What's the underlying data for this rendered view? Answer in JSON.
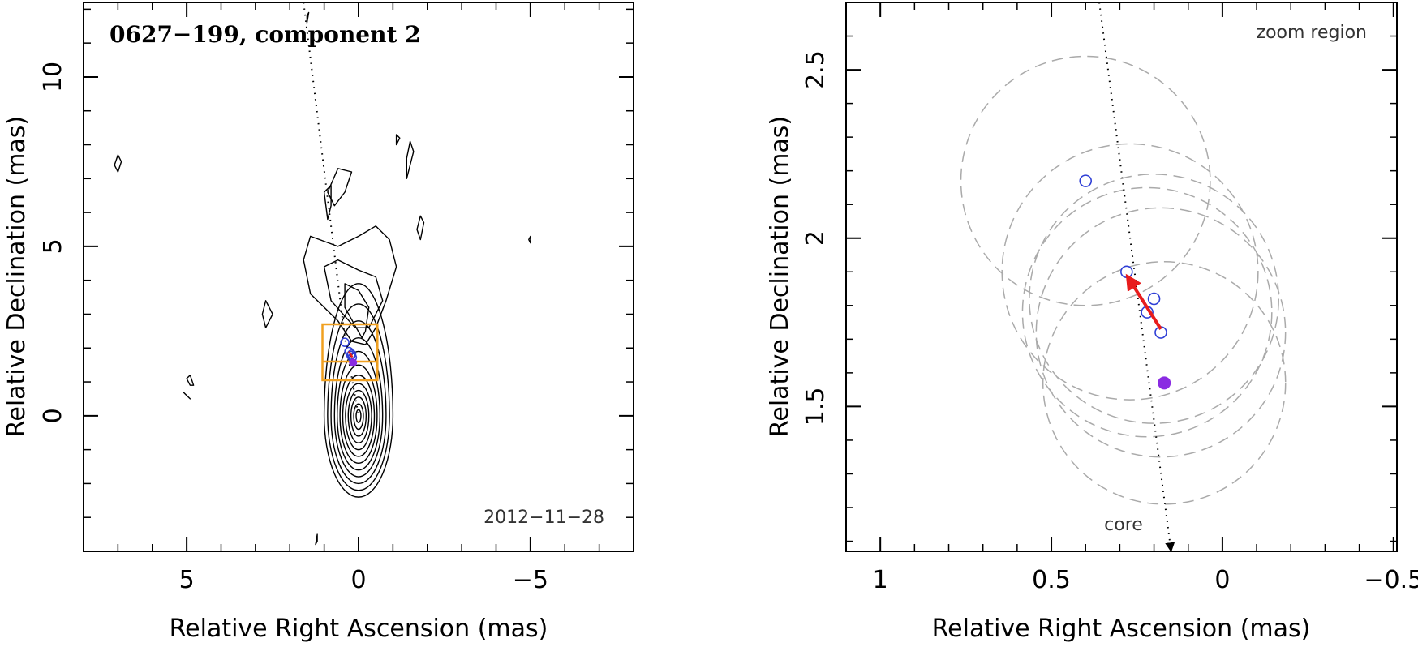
{
  "chart_data": [
    {
      "type": "contour",
      "title": "0627−199, component 2",
      "date_label": "2012−11−28",
      "xlabel": "Relative Right Ascension (mas)",
      "ylabel": "Relative Declination (mas)",
      "xlim": [
        8,
        -8
      ],
      "ylim": [
        -4,
        12.2
      ],
      "x_ticks": [
        5,
        0,
        -5
      ],
      "x_tick_labels": [
        "5",
        "0",
        "−5"
      ],
      "y_ticks": [
        0,
        5,
        10
      ],
      "y_tick_labels": [
        "0",
        "5",
        "10"
      ],
      "core_contours": {
        "center_x": 0,
        "center_y": 0,
        "levels": [
          {
            "rx": 1.0,
            "ry_up": 3.9,
            "ry_down": 2.4
          },
          {
            "rx": 0.9,
            "ry_up": 3.3,
            "ry_down": 2.2
          },
          {
            "rx": 0.8,
            "ry_up": 2.8,
            "ry_down": 2.0
          },
          {
            "rx": 0.7,
            "ry_up": 2.3,
            "ry_down": 1.8
          },
          {
            "rx": 0.62,
            "ry_up": 1.9,
            "ry_down": 1.6
          },
          {
            "rx": 0.54,
            "ry_up": 1.5,
            "ry_down": 1.4
          },
          {
            "rx": 0.46,
            "ry_up": 1.2,
            "ry_down": 1.2
          },
          {
            "rx": 0.38,
            "ry_up": 0.95,
            "ry_down": 1.0
          },
          {
            "rx": 0.3,
            "ry_up": 0.75,
            "ry_down": 0.8
          },
          {
            "rx": 0.22,
            "ry_up": 0.55,
            "ry_down": 0.6
          },
          {
            "rx": 0.14,
            "ry_up": 0.35,
            "ry_down": 0.4
          },
          {
            "rx": 0.07,
            "ry_up": 0.18,
            "ry_down": 0.2
          }
        ]
      },
      "outer_contours": [
        [
          [
            0.6,
            2.8
          ],
          [
            1.4,
            3.6
          ],
          [
            1.6,
            4.6
          ],
          [
            1.4,
            5.3
          ],
          [
            0.6,
            5.0
          ],
          [
            0.0,
            5.3
          ],
          [
            -0.5,
            5.6
          ],
          [
            -0.9,
            5.2
          ],
          [
            -1.1,
            4.4
          ],
          [
            -0.8,
            3.4
          ],
          [
            -0.5,
            2.6
          ],
          [
            -0.2,
            2.1
          ],
          [
            0.2,
            2.2
          ],
          [
            0.6,
            2.8
          ]
        ],
        [
          [
            0.1,
            2.6
          ],
          [
            0.8,
            3.4
          ],
          [
            1.0,
            4.4
          ],
          [
            0.6,
            4.6
          ],
          [
            0.0,
            4.3
          ],
          [
            -0.5,
            4.1
          ],
          [
            -0.7,
            3.4
          ],
          [
            -0.3,
            2.6
          ],
          [
            0.1,
            2.6
          ]
        ],
        [
          [
            -0.1,
            2.3
          ],
          [
            0.4,
            3.2
          ],
          [
            0.4,
            3.9
          ],
          [
            0.0,
            3.7
          ],
          [
            -0.3,
            3.2
          ],
          [
            -0.2,
            2.5
          ],
          [
            -0.1,
            2.3
          ]
        ],
        [
          [
            0.7,
            6.2
          ],
          [
            0.9,
            6.6
          ],
          [
            0.6,
            7.3
          ],
          [
            0.2,
            7.2
          ],
          [
            0.4,
            6.6
          ],
          [
            0.7,
            6.2
          ]
        ],
        [
          [
            0.9,
            5.8
          ],
          [
            1.0,
            6.6
          ],
          [
            0.8,
            6.8
          ],
          [
            0.8,
            6.2
          ],
          [
            0.9,
            5.8
          ]
        ],
        [
          [
            -1.4,
            7.0
          ],
          [
            -1.6,
            7.8
          ],
          [
            -1.5,
            8.1
          ],
          [
            -1.4,
            7.6
          ],
          [
            -1.4,
            7.0
          ]
        ],
        [
          [
            -1.1,
            8.0
          ],
          [
            -1.2,
            8.2
          ],
          [
            -1.1,
            8.3
          ],
          [
            -1.1,
            8.0
          ]
        ],
        [
          [
            -1.8,
            5.2
          ],
          [
            -1.9,
            5.7
          ],
          [
            -1.8,
            5.9
          ],
          [
            -1.7,
            5.5
          ],
          [
            -1.8,
            5.2
          ]
        ],
        [
          [
            2.7,
            2.6
          ],
          [
            2.5,
            3.0
          ],
          [
            2.7,
            3.4
          ],
          [
            2.8,
            3.0
          ],
          [
            2.7,
            2.6
          ]
        ],
        [
          [
            7.0,
            7.2
          ],
          [
            6.9,
            7.5
          ],
          [
            7.0,
            7.7
          ],
          [
            7.1,
            7.4
          ],
          [
            7.0,
            7.2
          ]
        ],
        [
          [
            4.8,
            0.9
          ],
          [
            4.9,
            1.2
          ],
          [
            5.0,
            1.1
          ],
          [
            4.9,
            0.9
          ],
          [
            4.8,
            0.9
          ]
        ],
        [
          [
            5.1,
            0.7
          ],
          [
            5.0,
            0.6
          ],
          [
            4.9,
            0.5
          ],
          [
            5.1,
            0.7
          ]
        ],
        [
          [
            -5.0,
            5.1
          ],
          [
            -5.0,
            5.3
          ],
          [
            -4.95,
            5.2
          ],
          [
            -5.0,
            5.1
          ]
        ],
        [
          [
            1.2,
            -3.5
          ],
          [
            1.25,
            -3.8
          ],
          [
            1.2,
            -3.7
          ],
          [
            1.2,
            -3.5
          ]
        ],
        [
          [
            1.5,
            11.6
          ],
          [
            1.45,
            11.9
          ],
          [
            1.5,
            11.8
          ],
          [
            1.5,
            11.6
          ]
        ]
      ],
      "jet_axis_line": [
        [
          1.6,
          12.2
        ],
        [
          0.4,
          2.3
        ],
        [
          0.0,
          0.0
        ]
      ],
      "zoom_box": {
        "x_min": -0.55,
        "x_max": 1.05,
        "y_min": 1.05,
        "y_max": 2.7
      },
      "zoom_box_inner_y": 1.6,
      "component_positions": [
        {
          "x": 0.4,
          "y": 2.17
        },
        {
          "x": 0.28,
          "y": 1.9
        },
        {
          "x": 0.2,
          "y": 1.82
        },
        {
          "x": 0.22,
          "y": 1.78
        },
        {
          "x": 0.18,
          "y": 1.72
        }
      ],
      "highlight_position": {
        "x": 0.16,
        "y": 1.57
      },
      "highlight_color": "#8a2be2",
      "component_color": "#2f3fd6",
      "contour_color": "#000000",
      "box_color": "#f0a020",
      "arrow_color": "#e81c1c"
    },
    {
      "type": "scatter",
      "annotation": "zoom region",
      "core_label": "core",
      "xlabel": "Relative Right Ascension (mas)",
      "ylabel": "Relative Declination (mas)",
      "xlim": [
        1.1,
        -0.51
      ],
      "ylim": [
        1.07,
        2.7
      ],
      "x_ticks": [
        1,
        0.5,
        0,
        -0.5
      ],
      "x_tick_labels": [
        "1",
        "0.5",
        "0",
        "−0.5"
      ],
      "y_ticks": [
        1.5,
        2,
        2.5
      ],
      "y_tick_labels": [
        "1.5",
        "2",
        "2.5"
      ],
      "points": [
        {
          "x": 0.4,
          "y": 2.17
        },
        {
          "x": 0.28,
          "y": 1.9
        },
        {
          "x": 0.2,
          "y": 1.82
        },
        {
          "x": 0.22,
          "y": 1.78
        },
        {
          "x": 0.18,
          "y": 1.72
        }
      ],
      "highlight_point": {
        "x": 0.17,
        "y": 1.57
      },
      "uncertainty_circles": [
        {
          "x": 0.4,
          "y": 2.17,
          "r": 0.37
        },
        {
          "x": 0.27,
          "y": 1.9,
          "r": 0.38
        },
        {
          "x": 0.2,
          "y": 1.82,
          "r": 0.37
        },
        {
          "x": 0.22,
          "y": 1.78,
          "r": 0.37
        },
        {
          "x": 0.18,
          "y": 1.72,
          "r": 0.37
        },
        {
          "x": 0.17,
          "y": 1.57,
          "r": 0.36
        }
      ],
      "motion_arrow": {
        "from": [
          0.18,
          1.73
        ],
        "to": [
          0.28,
          1.89
        ]
      },
      "jet_axis_line": [
        [
          0.36,
          2.7
        ],
        [
          0.15,
          1.07
        ]
      ],
      "point_color": "#2f3fd6",
      "highlight_color": "#8a2be2",
      "circle_color": "#aaaaaa",
      "arrow_color": "#e81c1c"
    }
  ]
}
